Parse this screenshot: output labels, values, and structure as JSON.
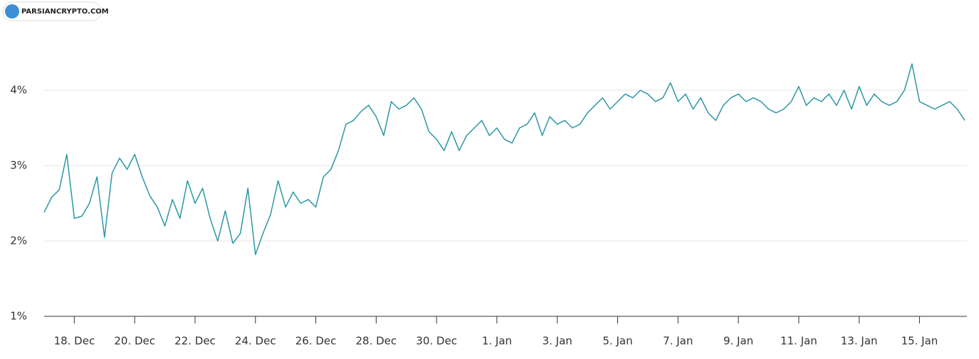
{
  "chart_data": {
    "type": "line",
    "watermark": "PARSIANCRYPTO.COM",
    "x": [
      0,
      0.25,
      0.5,
      0.75,
      1,
      1.25,
      1.5,
      1.75,
      2,
      2.25,
      2.5,
      2.75,
      3,
      3.25,
      3.5,
      3.75,
      4,
      4.25,
      4.5,
      4.75,
      5,
      5.25,
      5.5,
      5.75,
      6,
      6.25,
      6.5,
      6.75,
      7,
      7.25,
      7.5,
      7.75,
      8,
      8.25,
      8.5,
      8.75,
      9,
      9.25,
      9.5,
      9.75,
      10,
      10.25,
      10.5,
      10.75,
      11,
      11.25,
      11.5,
      11.75,
      12,
      12.25,
      12.5,
      12.75,
      13,
      13.25,
      13.5,
      13.75,
      14,
      14.25,
      14.5,
      14.75,
      15,
      15.25,
      15.5,
      15.75,
      16,
      16.25,
      16.5,
      16.75,
      17,
      17.25,
      17.5,
      17.75,
      18,
      18.25,
      18.5,
      18.75,
      19,
      19.25,
      19.5,
      19.75,
      20,
      20.25,
      20.5,
      20.75,
      21,
      21.25,
      21.5,
      21.75,
      22,
      22.25,
      22.5,
      22.75,
      23,
      23.25,
      23.5,
      23.75,
      24,
      24.25,
      24.5,
      24.75,
      25,
      25.25,
      25.5,
      25.75,
      26,
      26.25,
      26.5,
      26.75,
      27,
      27.25,
      27.5,
      27.75,
      28,
      28.25,
      28.5,
      28.75,
      29,
      29.25,
      29.5,
      29.75,
      30,
      30.25,
      30.5
    ],
    "series": [
      {
        "color": "#2b97a6",
        "values": [
          2.38,
          2.58,
          2.68,
          3.15,
          2.3,
          2.33,
          2.5,
          2.85,
          2.05,
          2.9,
          3.1,
          2.95,
          3.15,
          2.85,
          2.6,
          2.45,
          2.2,
          2.55,
          2.3,
          2.8,
          2.5,
          2.7,
          2.3,
          2.0,
          2.4,
          1.97,
          2.1,
          2.7,
          1.82,
          2.1,
          2.35,
          2.8,
          2.45,
          2.65,
          2.5,
          2.55,
          2.45,
          2.85,
          2.95,
          3.2,
          3.55,
          3.6,
          3.72,
          3.8,
          3.65,
          3.4,
          3.85,
          3.75,
          3.8,
          3.9,
          3.75,
          3.45,
          3.35,
          3.2,
          3.45,
          3.2,
          3.4,
          3.5,
          3.6,
          3.4,
          3.5,
          3.35,
          3.3,
          3.5,
          3.55,
          3.7,
          3.4,
          3.65,
          3.55,
          3.6,
          3.5,
          3.55,
          3.7,
          3.8,
          3.9,
          3.75,
          3.85,
          3.95,
          3.9,
          4.0,
          3.95,
          3.85,
          3.9,
          4.1,
          3.85,
          3.95,
          3.75,
          3.9,
          3.7,
          3.6,
          3.8,
          3.9,
          3.95,
          3.85,
          3.9,
          3.85,
          3.75,
          3.7,
          3.75,
          3.85,
          4.05,
          3.8,
          3.9,
          3.85,
          3.95,
          3.8,
          4.0,
          3.75,
          4.05,
          3.8,
          3.95,
          3.85,
          3.8,
          3.85,
          4.0,
          4.35,
          3.85,
          3.8,
          3.75,
          3.8,
          3.85,
          3.75,
          3.6
        ]
      }
    ],
    "xlim": [
      0,
      30.57
    ],
    "xticks": [
      {
        "value": 1,
        "label": "18. Dec"
      },
      {
        "value": 3,
        "label": "20. Dec"
      },
      {
        "value": 5,
        "label": "22. Dec"
      },
      {
        "value": 7,
        "label": "24. Dec"
      },
      {
        "value": 9,
        "label": "26. Dec"
      },
      {
        "value": 11,
        "label": "28. Dec"
      },
      {
        "value": 13,
        "label": "30. Dec"
      },
      {
        "value": 15,
        "label": "1. Jan"
      },
      {
        "value": 17,
        "label": "3. Jan"
      },
      {
        "value": 19,
        "label": "5. Jan"
      },
      {
        "value": 21,
        "label": "7. Jan"
      },
      {
        "value": 23,
        "label": "9. Jan"
      },
      {
        "value": 25,
        "label": "11. Jan"
      },
      {
        "value": 27,
        "label": "13. Jan"
      },
      {
        "value": 29,
        "label": "15. Jan"
      }
    ],
    "ylim": [
      1,
      5
    ],
    "yticks": [
      {
        "value": 1,
        "label": "1%"
      },
      {
        "value": 2,
        "label": "2%"
      },
      {
        "value": 3,
        "label": "3%"
      },
      {
        "value": 4,
        "label": "4%"
      }
    ],
    "grid": true
  }
}
